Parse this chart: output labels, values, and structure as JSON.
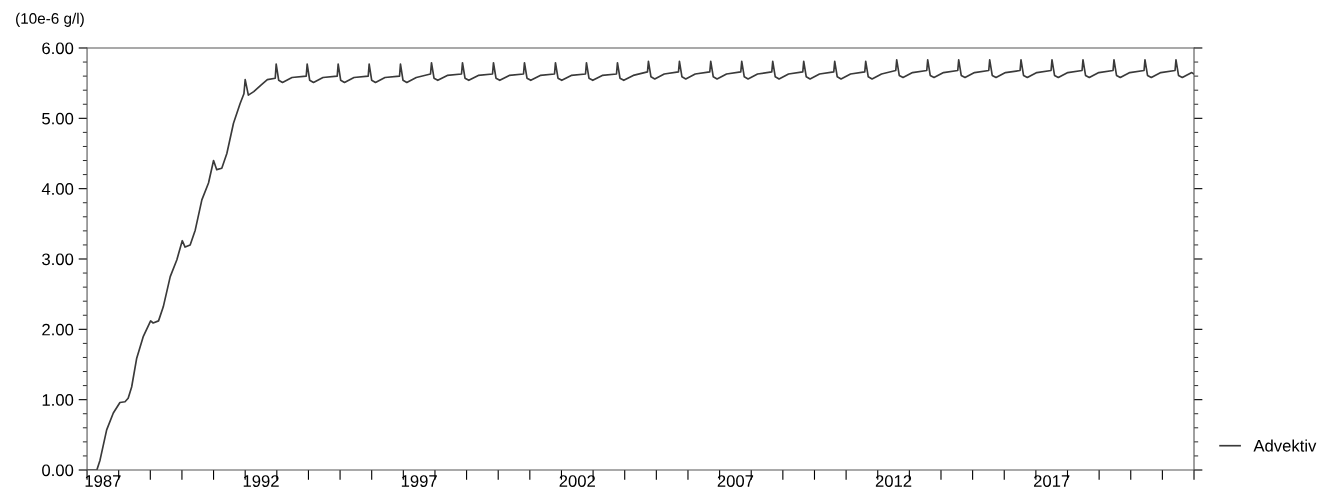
{
  "chart_data": {
    "type": "line",
    "ylabel": "(10e-6 g/l)",
    "xlim": [
      1987,
      2022
    ],
    "xticks": [
      {
        "value": 1987,
        "label": null
      },
      {
        "value": 1988,
        "label": null
      },
      {
        "value": 1989,
        "label": null
      },
      {
        "value": 1990,
        "label": null
      },
      {
        "value": 1991,
        "label": null
      },
      {
        "value": 1992,
        "label": null
      },
      {
        "value": 1993,
        "label": null
      },
      {
        "value": 1994,
        "label": null
      },
      {
        "value": 1995,
        "label": null
      },
      {
        "value": 1996,
        "label": null
      },
      {
        "value": 1997,
        "label": null
      },
      {
        "value": 1998,
        "label": null
      },
      {
        "value": 1999,
        "label": null
      },
      {
        "value": 2000,
        "label": null
      },
      {
        "value": 2001,
        "label": null
      },
      {
        "value": 2002,
        "label": null
      },
      {
        "value": 2003,
        "label": null
      },
      {
        "value": 2004,
        "label": null
      },
      {
        "value": 2005,
        "label": null
      },
      {
        "value": 2006,
        "label": null
      },
      {
        "value": 2007,
        "label": null
      },
      {
        "value": 2008,
        "label": null
      },
      {
        "value": 2009,
        "label": null
      },
      {
        "value": 2010,
        "label": null
      },
      {
        "value": 2011,
        "label": null
      },
      {
        "value": 2012,
        "label": null
      },
      {
        "value": 2013,
        "label": null
      },
      {
        "value": 2014,
        "label": null
      },
      {
        "value": 2015,
        "label": null
      },
      {
        "value": 2016,
        "label": null
      },
      {
        "value": 2017,
        "label": null
      },
      {
        "value": 2018,
        "label": null
      },
      {
        "value": 2019,
        "label": null
      },
      {
        "value": 2020,
        "label": null
      },
      {
        "value": 2021,
        "label": null
      },
      {
        "value": 2022,
        "label": null
      },
      {
        "value": 1987.5,
        "label": "1987"
      },
      {
        "value": 1992.5,
        "label": "1992"
      },
      {
        "value": 1997.5,
        "label": "1997"
      },
      {
        "value": 2002.5,
        "label": "2002"
      },
      {
        "value": 2007.5,
        "label": "2007"
      },
      {
        "value": 2012.5,
        "label": "2012"
      },
      {
        "value": 2017.5,
        "label": "2017"
      }
    ],
    "ylim": [
      0,
      6
    ],
    "yticks": [
      {
        "value": 0,
        "label": "0.00"
      },
      {
        "value": 1,
        "label": "1.00"
      },
      {
        "value": 2,
        "label": "2.00"
      },
      {
        "value": 3,
        "label": "3.00"
      },
      {
        "value": 4,
        "label": "4.00"
      },
      {
        "value": 5,
        "label": "5.00"
      },
      {
        "value": 6,
        "label": "6.00"
      },
      {
        "value": 0.2,
        "label": null
      },
      {
        "value": 0.4,
        "label": null
      },
      {
        "value": 0.6,
        "label": null
      },
      {
        "value": 0.8,
        "label": null
      },
      {
        "value": 1.2,
        "label": null
      },
      {
        "value": 1.4,
        "label": null
      },
      {
        "value": 1.6,
        "label": null
      },
      {
        "value": 1.8,
        "label": null
      },
      {
        "value": 2.2,
        "label": null
      },
      {
        "value": 2.4,
        "label": null
      },
      {
        "value": 2.6,
        "label": null
      },
      {
        "value": 2.8,
        "label": null
      },
      {
        "value": 3.2,
        "label": null
      },
      {
        "value": 3.4,
        "label": null
      },
      {
        "value": 3.6,
        "label": null
      },
      {
        "value": 3.8,
        "label": null
      },
      {
        "value": 4.2,
        "label": null
      },
      {
        "value": 4.4,
        "label": null
      },
      {
        "value": 4.6,
        "label": null
      },
      {
        "value": 4.8,
        "label": null
      },
      {
        "value": 5.2,
        "label": null
      },
      {
        "value": 5.4,
        "label": null
      },
      {
        "value": 5.6,
        "label": null
      },
      {
        "value": 5.8,
        "label": null
      }
    ],
    "grid": false,
    "legend": "bottom right",
    "marker": "none",
    "line_style": "solid",
    "series": [
      {
        "name": "Advektiv",
        "color": "#3a3a3a",
        "x": [
          1987.0,
          1987.31,
          1987.41,
          1987.62,
          1987.83,
          1988.04,
          1988.2,
          1988.3,
          1988.41,
          1988.57,
          1988.78,
          1989.01,
          1989.09,
          1989.26,
          1989.41,
          1989.63,
          1989.84,
          1990.01,
          1990.1,
          1990.26,
          1990.42,
          1990.63,
          1990.84,
          1991.0,
          1991.1,
          1991.26,
          1991.42,
          1991.63,
          1991.84,
          1991.96,
          1992.0,
          1992.1,
          1992.27,
          1992.49,
          1992.7,
          1992.95,
          1992.98,
          1993.06,
          1993.18,
          1993.48,
          1993.93,
          1993.96,
          1994.04,
          1994.16,
          1994.46,
          1994.91,
          1994.94,
          1995.02,
          1995.14,
          1995.44,
          1995.89,
          1995.92,
          1996.0,
          1996.12,
          1996.42,
          1996.88,
          1996.91,
          1996.99,
          1997.11,
          1997.41,
          1997.86,
          1997.89,
          1997.97,
          1998.09,
          1998.39,
          1998.84,
          1998.87,
          1998.95,
          1999.07,
          1999.37,
          1999.82,
          1999.85,
          1999.93,
          2000.05,
          2000.35,
          2000.8,
          2000.83,
          2000.91,
          2001.03,
          2001.33,
          2001.78,
          2001.81,
          2001.89,
          2002.01,
          2002.31,
          2002.76,
          2002.79,
          2002.87,
          2002.99,
          2003.29,
          2003.74,
          2003.77,
          2003.85,
          2003.97,
          2004.27,
          2004.72,
          2004.75,
          2004.83,
          2004.95,
          2005.25,
          2005.7,
          2005.73,
          2005.81,
          2005.93,
          2006.23,
          2006.69,
          2006.72,
          2006.8,
          2006.92,
          2007.22,
          2007.67,
          2007.7,
          2007.78,
          2007.9,
          2008.2,
          2008.65,
          2008.68,
          2008.76,
          2008.88,
          2009.18,
          2009.63,
          2009.66,
          2009.74,
          2009.86,
          2010.16,
          2010.61,
          2010.64,
          2010.72,
          2010.84,
          2011.14,
          2011.59,
          2011.62,
          2011.7,
          2011.82,
          2012.12,
          2012.57,
          2012.6,
          2012.68,
          2012.8,
          2013.1,
          2013.55,
          2013.58,
          2013.66,
          2013.78,
          2014.08,
          2014.53,
          2014.56,
          2014.64,
          2014.76,
          2015.06,
          2015.51,
          2015.54,
          2015.62,
          2015.74,
          2016.04,
          2016.5,
          2016.53,
          2016.61,
          2016.73,
          2017.03,
          2017.48,
          2017.51,
          2017.59,
          2017.71,
          2018.01,
          2018.46,
          2018.49,
          2018.57,
          2018.69,
          2018.99,
          2019.44,
          2019.47,
          2019.55,
          2019.67,
          2019.97,
          2020.42,
          2020.45,
          2020.53,
          2020.65,
          2020.95,
          2021.4,
          2021.43,
          2021.51,
          2021.63,
          2021.93,
          2022.0
        ],
        "values": [
          0,
          0,
          0.14,
          0.57,
          0.81,
          0.96,
          0.97,
          1.02,
          1.18,
          1.59,
          1.9,
          2.12,
          2.09,
          2.12,
          2.32,
          2.75,
          2.99,
          3.26,
          3.17,
          3.2,
          3.41,
          3.84,
          4.08,
          4.4,
          4.27,
          4.29,
          4.5,
          4.93,
          5.21,
          5.35,
          5.55,
          5.33,
          5.38,
          5.47,
          5.55,
          5.57,
          5.77,
          5.54,
          5.51,
          5.58,
          5.6,
          5.77,
          5.54,
          5.51,
          5.58,
          5.6,
          5.77,
          5.54,
          5.51,
          5.58,
          5.6,
          5.77,
          5.54,
          5.51,
          5.58,
          5.6,
          5.77,
          5.54,
          5.51,
          5.58,
          5.63,
          5.79,
          5.57,
          5.54,
          5.61,
          5.63,
          5.79,
          5.57,
          5.54,
          5.61,
          5.63,
          5.79,
          5.57,
          5.54,
          5.61,
          5.63,
          5.79,
          5.57,
          5.54,
          5.61,
          5.63,
          5.79,
          5.57,
          5.54,
          5.61,
          5.63,
          5.79,
          5.57,
          5.54,
          5.61,
          5.63,
          5.79,
          5.57,
          5.54,
          5.61,
          5.66,
          5.81,
          5.59,
          5.56,
          5.63,
          5.66,
          5.81,
          5.59,
          5.56,
          5.63,
          5.66,
          5.81,
          5.59,
          5.56,
          5.63,
          5.66,
          5.81,
          5.59,
          5.56,
          5.63,
          5.66,
          5.81,
          5.59,
          5.56,
          5.63,
          5.66,
          5.81,
          5.59,
          5.56,
          5.63,
          5.66,
          5.81,
          5.59,
          5.56,
          5.63,
          5.66,
          5.81,
          5.59,
          5.56,
          5.63,
          5.68,
          5.83,
          5.61,
          5.58,
          5.65,
          5.68,
          5.83,
          5.61,
          5.58,
          5.65,
          5.68,
          5.83,
          5.61,
          5.58,
          5.65,
          5.68,
          5.83,
          5.61,
          5.58,
          5.65,
          5.68,
          5.83,
          5.61,
          5.58,
          5.65,
          5.68,
          5.83,
          5.61,
          5.58,
          5.65,
          5.68,
          5.83,
          5.61,
          5.58,
          5.65,
          5.68,
          5.83,
          5.61,
          5.58,
          5.65,
          5.68,
          5.83,
          5.61,
          5.58,
          5.65,
          5.68,
          5.83,
          5.61,
          5.58,
          5.65,
          5.63
        ]
      }
    ]
  }
}
